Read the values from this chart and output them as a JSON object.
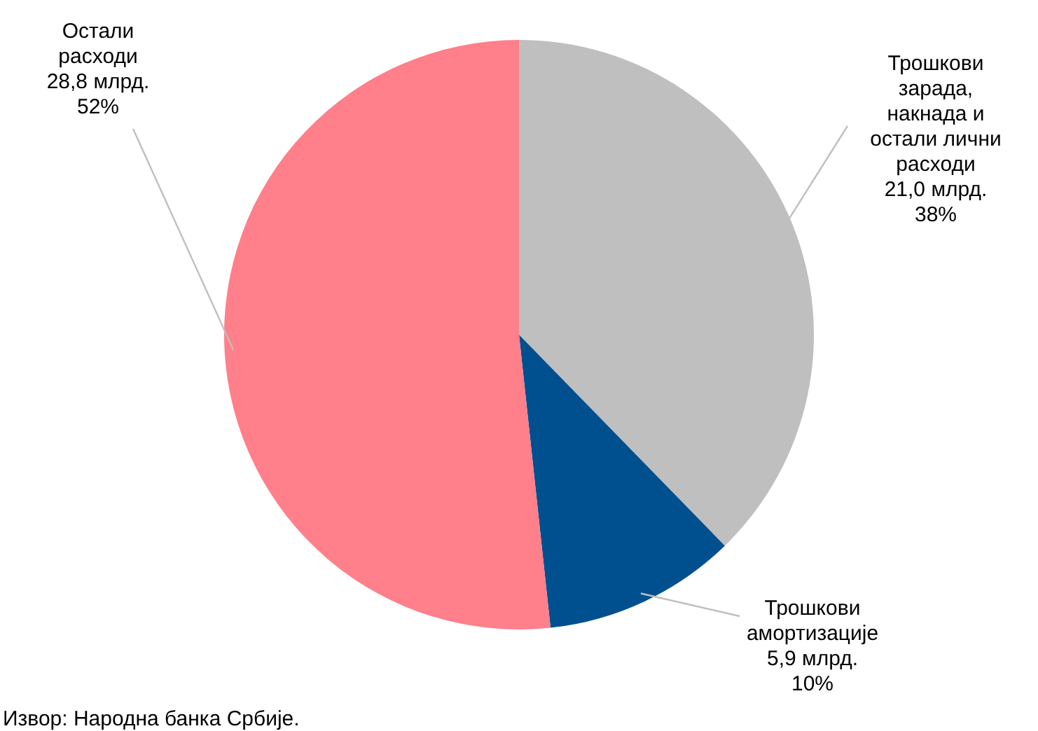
{
  "chart_data": {
    "type": "pie",
    "categories": [
      "Трошкови зарада, накнада и остали лични расходи",
      "Трошкови амортизације",
      "Остали расходи"
    ],
    "values": [
      21.0,
      5.9,
      28.8
    ],
    "value_labels": [
      "21,0 млрд.\n38%",
      "5,9 млрд.\n10%",
      "28,8 млрд.\n52%"
    ],
    "colors": [
      "#bfbfbf",
      "#00508f",
      "#ff7f8a"
    ],
    "annotations": [
      "Извор: Народна банка Србије."
    ],
    "legend": false
  }
}
